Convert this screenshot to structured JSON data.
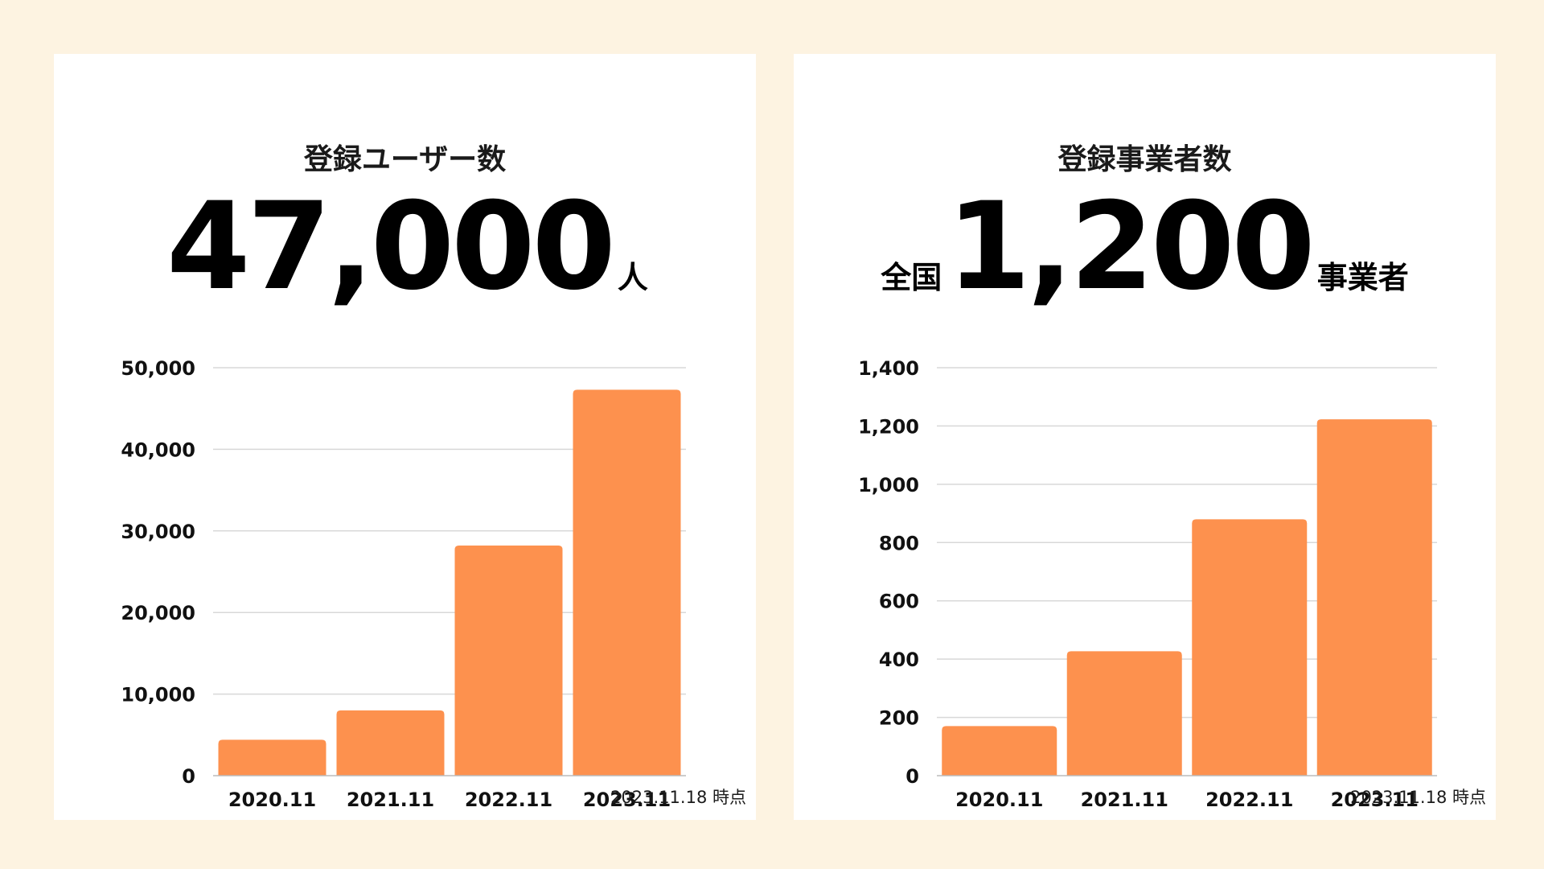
{
  "colors": {
    "background": "#fdf3e1",
    "panel": "#ffffff",
    "bar": "#fd914e",
    "grid": "#d8d8d8",
    "text": "#111111"
  },
  "panels": [
    {
      "title": "登録ユーザー数",
      "headline": {
        "prefix": "",
        "value": "47,000",
        "suffix": "人"
      },
      "footnote": "2023.11.18 時点"
    },
    {
      "title": "登録事業者数",
      "headline": {
        "prefix": "全国",
        "value": "1,200",
        "suffix": "事業者"
      },
      "footnote": "2023.11.18 時点"
    }
  ],
  "chart_data": [
    {
      "type": "bar",
      "title": "登録ユーザー数",
      "categories": [
        "2020.11",
        "2021.11",
        "2022.11",
        "2023.11"
      ],
      "values": [
        4400,
        8000,
        28200,
        47300
      ],
      "ylim": [
        0,
        50000
      ],
      "yticks": [
        0,
        10000,
        20000,
        30000,
        40000,
        50000
      ],
      "ytick_labels": [
        "0",
        "10,000",
        "20,000",
        "30,000",
        "40,000",
        "50,000"
      ],
      "grid": true
    },
    {
      "type": "bar",
      "title": "登録事業者数",
      "categories": [
        "2020.11",
        "2021.11",
        "2022.11",
        "2023.11"
      ],
      "values": [
        170,
        427,
        880,
        1223
      ],
      "ylim": [
        0,
        1400
      ],
      "yticks": [
        0,
        200,
        400,
        600,
        800,
        1000,
        1200,
        1400
      ],
      "ytick_labels": [
        "0",
        "200",
        "400",
        "600",
        "800",
        "1,000",
        "1,200",
        "1,400"
      ],
      "grid": true
    }
  ]
}
